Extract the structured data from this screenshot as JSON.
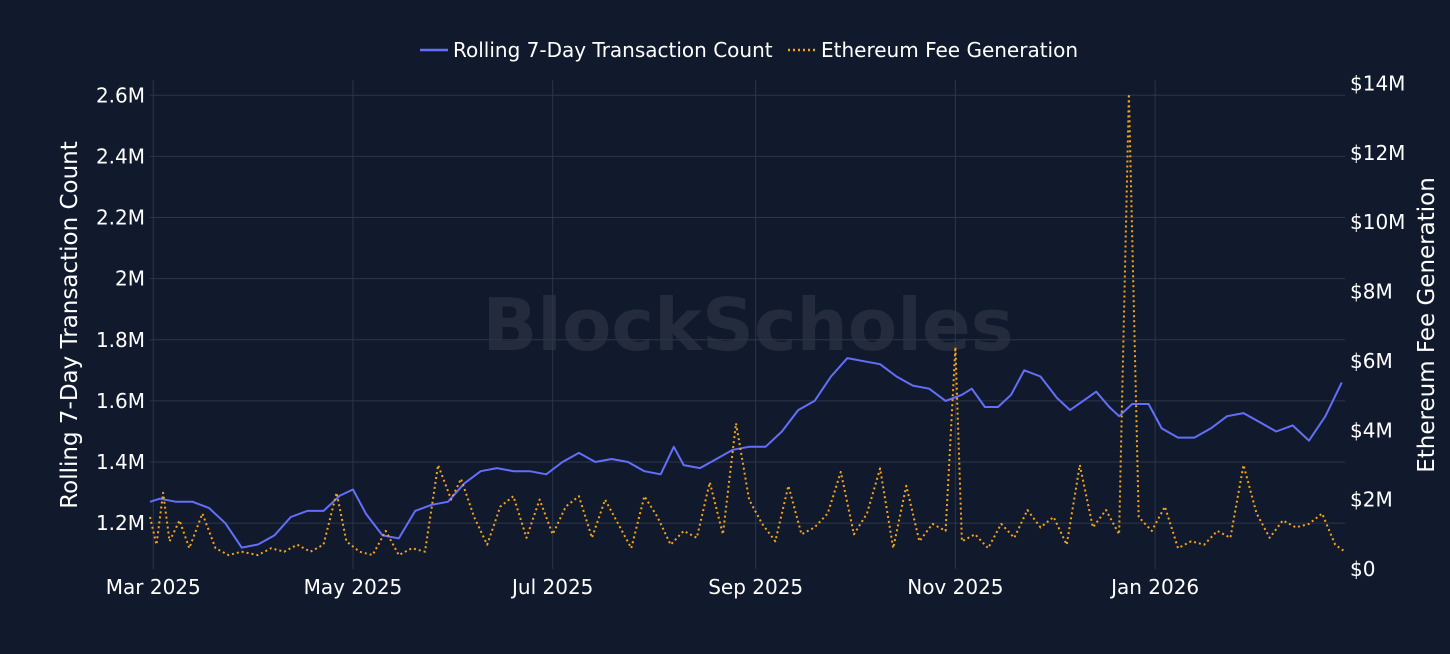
{
  "watermark": "BlockScholes",
  "legend": {
    "items": [
      {
        "label": "Rolling 7-Day Transaction Count",
        "color": "#636efa",
        "dash": "solid"
      },
      {
        "label": "Ethereum Fee Generation",
        "color": "#f7a21b",
        "dash": "dot"
      }
    ]
  },
  "colors": {
    "background": "#111a2c",
    "grid": "#2c3649",
    "text": "#ffffff",
    "tx_line": "#636efa",
    "fee_line": "#f7a21b"
  },
  "chart_data": {
    "type": "line",
    "legend_position": "top-center",
    "grid": true,
    "xlabel": "",
    "x_range": [
      "2025-02-28",
      "2026-02-28"
    ],
    "x_ticks": [
      {
        "date": "2025-03-01",
        "label": "Mar 2025"
      },
      {
        "date": "2025-05-01",
        "label": "May 2025"
      },
      {
        "date": "2025-07-01",
        "label": "Jul 2025"
      },
      {
        "date": "2025-09-01",
        "label": "Sep 2025"
      },
      {
        "date": "2025-11-01",
        "label": "Nov 2025"
      },
      {
        "date": "2026-01-01",
        "label": "Jan 2026"
      }
    ],
    "y_left": {
      "label": "Rolling 7-Day Transaction Count",
      "range": [
        1050000,
        2650000
      ],
      "ticks": [
        {
          "value": 1200000,
          "label": "1.2M"
        },
        {
          "value": 1400000,
          "label": "1.4M"
        },
        {
          "value": 1600000,
          "label": "1.6M"
        },
        {
          "value": 1800000,
          "label": "1.8M"
        },
        {
          "value": 2000000,
          "label": "2M"
        },
        {
          "value": 2200000,
          "label": "2.2M"
        },
        {
          "value": 2400000,
          "label": "2.4M"
        },
        {
          "value": 2600000,
          "label": "2.6M"
        }
      ]
    },
    "y_right": {
      "label": "Ethereum Fee Generation",
      "range": [
        0,
        14100000
      ],
      "ticks": [
        {
          "value": 0,
          "label": "$0"
        },
        {
          "value": 2000000,
          "label": "$2M"
        },
        {
          "value": 4000000,
          "label": "$4M"
        },
        {
          "value": 6000000,
          "label": "$6M"
        },
        {
          "value": 8000000,
          "label": "$8M"
        },
        {
          "value": 10000000,
          "label": "$10M"
        },
        {
          "value": 12000000,
          "label": "$12M"
        },
        {
          "value": 14000000,
          "label": "$14M"
        }
      ]
    },
    "series": [
      {
        "name": "Rolling 7-Day Transaction Count",
        "axis": "left",
        "points": [
          [
            "2025-02-28",
            1270000
          ],
          [
            "2025-03-03",
            1280000
          ],
          [
            "2025-03-08",
            1270000
          ],
          [
            "2025-03-13",
            1270000
          ],
          [
            "2025-03-18",
            1250000
          ],
          [
            "2025-03-23",
            1200000
          ],
          [
            "2025-03-28",
            1120000
          ],
          [
            "2025-04-02",
            1130000
          ],
          [
            "2025-04-07",
            1160000
          ],
          [
            "2025-04-12",
            1220000
          ],
          [
            "2025-04-17",
            1240000
          ],
          [
            "2025-04-22",
            1240000
          ],
          [
            "2025-04-27",
            1290000
          ],
          [
            "2025-05-01",
            1310000
          ],
          [
            "2025-05-05",
            1230000
          ],
          [
            "2025-05-10",
            1160000
          ],
          [
            "2025-05-15",
            1150000
          ],
          [
            "2025-05-20",
            1240000
          ],
          [
            "2025-05-25",
            1260000
          ],
          [
            "2025-05-30",
            1270000
          ],
          [
            "2025-06-04",
            1330000
          ],
          [
            "2025-06-09",
            1370000
          ],
          [
            "2025-06-14",
            1380000
          ],
          [
            "2025-06-19",
            1370000
          ],
          [
            "2025-06-24",
            1370000
          ],
          [
            "2025-06-29",
            1360000
          ],
          [
            "2025-07-04",
            1400000
          ],
          [
            "2025-07-09",
            1430000
          ],
          [
            "2025-07-14",
            1400000
          ],
          [
            "2025-07-19",
            1410000
          ],
          [
            "2025-07-24",
            1400000
          ],
          [
            "2025-07-29",
            1370000
          ],
          [
            "2025-08-03",
            1360000
          ],
          [
            "2025-08-07",
            1450000
          ],
          [
            "2025-08-10",
            1390000
          ],
          [
            "2025-08-15",
            1380000
          ],
          [
            "2025-08-20",
            1410000
          ],
          [
            "2025-08-25",
            1440000
          ],
          [
            "2025-08-30",
            1450000
          ],
          [
            "2025-09-04",
            1450000
          ],
          [
            "2025-09-09",
            1500000
          ],
          [
            "2025-09-14",
            1570000
          ],
          [
            "2025-09-19",
            1600000
          ],
          [
            "2025-09-24",
            1680000
          ],
          [
            "2025-09-29",
            1740000
          ],
          [
            "2025-10-04",
            1730000
          ],
          [
            "2025-10-09",
            1720000
          ],
          [
            "2025-10-14",
            1680000
          ],
          [
            "2025-10-19",
            1650000
          ],
          [
            "2025-10-24",
            1640000
          ],
          [
            "2025-10-29",
            1600000
          ],
          [
            "2025-11-03",
            1620000
          ],
          [
            "2025-11-06",
            1640000
          ],
          [
            "2025-11-10",
            1580000
          ],
          [
            "2025-11-14",
            1580000
          ],
          [
            "2025-11-18",
            1620000
          ],
          [
            "2025-11-22",
            1700000
          ],
          [
            "2025-11-27",
            1680000
          ],
          [
            "2025-12-02",
            1610000
          ],
          [
            "2025-12-06",
            1570000
          ],
          [
            "2025-12-10",
            1600000
          ],
          [
            "2025-12-14",
            1630000
          ],
          [
            "2025-12-18",
            1580000
          ],
          [
            "2025-12-21",
            1550000
          ],
          [
            "2025-12-25",
            1590000
          ],
          [
            "2025-12-30",
            1590000
          ],
          [
            "2026-01-03",
            1510000
          ],
          [
            "2026-01-08",
            1480000
          ],
          [
            "2026-01-13",
            1480000
          ],
          [
            "2026-01-18",
            1510000
          ],
          [
            "2026-01-23",
            1550000
          ],
          [
            "2026-01-28",
            1560000
          ],
          [
            "2026-02-02",
            1530000
          ],
          [
            "2026-02-07",
            1500000
          ],
          [
            "2026-02-12",
            1520000
          ],
          [
            "2026-02-17",
            1470000
          ],
          [
            "2026-02-22",
            1550000
          ],
          [
            "2026-02-27",
            1660000
          ]
        ]
      },
      {
        "name": "Ethereum Fee Generation",
        "axis": "right",
        "points": [
          [
            "2025-02-28",
            1500000
          ],
          [
            "2025-03-02",
            700000
          ],
          [
            "2025-03-04",
            2200000
          ],
          [
            "2025-03-06",
            800000
          ],
          [
            "2025-03-09",
            1400000
          ],
          [
            "2025-03-12",
            600000
          ],
          [
            "2025-03-16",
            1600000
          ],
          [
            "2025-03-20",
            600000
          ],
          [
            "2025-03-24",
            400000
          ],
          [
            "2025-03-28",
            500000
          ],
          [
            "2025-04-02",
            400000
          ],
          [
            "2025-04-06",
            600000
          ],
          [
            "2025-04-10",
            500000
          ],
          [
            "2025-04-14",
            700000
          ],
          [
            "2025-04-18",
            500000
          ],
          [
            "2025-04-22",
            700000
          ],
          [
            "2025-04-26",
            2200000
          ],
          [
            "2025-04-29",
            800000
          ],
          [
            "2025-05-03",
            500000
          ],
          [
            "2025-05-07",
            400000
          ],
          [
            "2025-05-11",
            1100000
          ],
          [
            "2025-05-15",
            400000
          ],
          [
            "2025-05-19",
            600000
          ],
          [
            "2025-05-23",
            500000
          ],
          [
            "2025-05-27",
            3000000
          ],
          [
            "2025-05-31",
            2000000
          ],
          [
            "2025-06-03",
            2600000
          ],
          [
            "2025-06-07",
            1500000
          ],
          [
            "2025-06-11",
            700000
          ],
          [
            "2025-06-15",
            1800000
          ],
          [
            "2025-06-19",
            2100000
          ],
          [
            "2025-06-23",
            900000
          ],
          [
            "2025-06-27",
            2000000
          ],
          [
            "2025-07-01",
            1000000
          ],
          [
            "2025-07-05",
            1800000
          ],
          [
            "2025-07-09",
            2100000
          ],
          [
            "2025-07-13",
            900000
          ],
          [
            "2025-07-17",
            2000000
          ],
          [
            "2025-07-21",
            1300000
          ],
          [
            "2025-07-25",
            600000
          ],
          [
            "2025-07-29",
            2100000
          ],
          [
            "2025-08-02",
            1500000
          ],
          [
            "2025-08-06",
            700000
          ],
          [
            "2025-08-10",
            1100000
          ],
          [
            "2025-08-14",
            900000
          ],
          [
            "2025-08-18",
            2500000
          ],
          [
            "2025-08-22",
            1000000
          ],
          [
            "2025-08-26",
            4200000
          ],
          [
            "2025-08-30",
            2000000
          ],
          [
            "2025-09-03",
            1300000
          ],
          [
            "2025-09-07",
            800000
          ],
          [
            "2025-09-11",
            2400000
          ],
          [
            "2025-09-15",
            1000000
          ],
          [
            "2025-09-19",
            1200000
          ],
          [
            "2025-09-23",
            1600000
          ],
          [
            "2025-09-27",
            2800000
          ],
          [
            "2025-10-01",
            1000000
          ],
          [
            "2025-10-05",
            1600000
          ],
          [
            "2025-10-09",
            2900000
          ],
          [
            "2025-10-13",
            600000
          ],
          [
            "2025-10-17",
            2400000
          ],
          [
            "2025-10-21",
            800000
          ],
          [
            "2025-10-25",
            1300000
          ],
          [
            "2025-10-29",
            1100000
          ],
          [
            "2025-11-01",
            6400000
          ],
          [
            "2025-11-03",
            800000
          ],
          [
            "2025-11-07",
            1000000
          ],
          [
            "2025-11-11",
            600000
          ],
          [
            "2025-11-15",
            1300000
          ],
          [
            "2025-11-19",
            900000
          ],
          [
            "2025-11-23",
            1700000
          ],
          [
            "2025-11-27",
            1200000
          ],
          [
            "2025-12-01",
            1500000
          ],
          [
            "2025-12-05",
            700000
          ],
          [
            "2025-12-09",
            3000000
          ],
          [
            "2025-12-13",
            1200000
          ],
          [
            "2025-12-17",
            1700000
          ],
          [
            "2025-12-21",
            1000000
          ],
          [
            "2025-12-24",
            13700000
          ],
          [
            "2025-12-27",
            1500000
          ],
          [
            "2025-12-31",
            1100000
          ],
          [
            "2026-01-04",
            1800000
          ],
          [
            "2026-01-08",
            600000
          ],
          [
            "2026-01-12",
            800000
          ],
          [
            "2026-01-16",
            700000
          ],
          [
            "2026-01-20",
            1100000
          ],
          [
            "2026-01-24",
            900000
          ],
          [
            "2026-01-28",
            3000000
          ],
          [
            "2026-02-01",
            1600000
          ],
          [
            "2026-02-05",
            900000
          ],
          [
            "2026-02-09",
            1400000
          ],
          [
            "2026-02-13",
            1200000
          ],
          [
            "2026-02-17",
            1300000
          ],
          [
            "2026-02-21",
            1600000
          ],
          [
            "2026-02-25",
            700000
          ],
          [
            "2026-02-28",
            500000
          ]
        ]
      }
    ]
  }
}
